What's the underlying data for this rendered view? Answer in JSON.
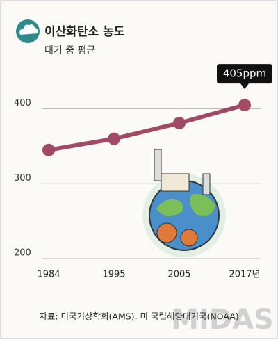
{
  "chart_data": {
    "type": "line",
    "title": "이산화탄소 농도",
    "subtitle": "대기 중 평균",
    "categories": [
      "1984",
      "1995",
      "2005",
      "2017년"
    ],
    "series": [
      {
        "name": "이산화탄소 농도",
        "color": "#a04a66",
        "values": [
          345,
          360,
          381,
          405
        ],
        "value_labels": [
          null,
          null,
          null,
          "405ppm"
        ]
      }
    ],
    "ylim": [
      200,
      420
    ],
    "yticks": [
      200,
      300,
      400
    ],
    "grid": true,
    "source": "자료: 미국기상학회(AMS), 미 국립해양대기국(NOAA)",
    "watermark": "MIDAS"
  }
}
